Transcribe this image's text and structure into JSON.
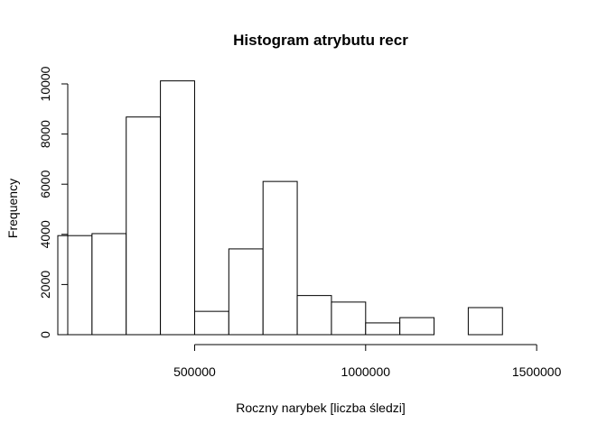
{
  "chart_data": {
    "type": "bar",
    "title": "Histogram atrybutu recr",
    "xlabel": "Roczny narybek [liczba śledzi]",
    "ylabel": "Frequency",
    "bin_edges": [
      100000,
      200000,
      300000,
      400000,
      500000,
      600000,
      700000,
      800000,
      900000,
      1000000,
      1100000,
      1200000,
      1300000,
      1400000,
      1500000,
      1600000
    ],
    "values": [
      3950,
      4030,
      8680,
      10120,
      930,
      3420,
      6110,
      1560,
      1300,
      470,
      680,
      0,
      1080,
      0,
      0
    ],
    "xlim": [
      100000,
      1600000
    ],
    "ylim": [
      0,
      10000
    ],
    "x_ticks": [
      500000,
      1000000,
      1500000
    ],
    "x_tick_labels": [
      "500000",
      "1000000",
      "1500000"
    ],
    "y_ticks": [
      0,
      2000,
      4000,
      6000,
      8000,
      10000
    ],
    "y_tick_labels": [
      "0",
      "2000",
      "4000",
      "6000",
      "8000",
      "10000"
    ],
    "grid": false,
    "legend": "none"
  }
}
